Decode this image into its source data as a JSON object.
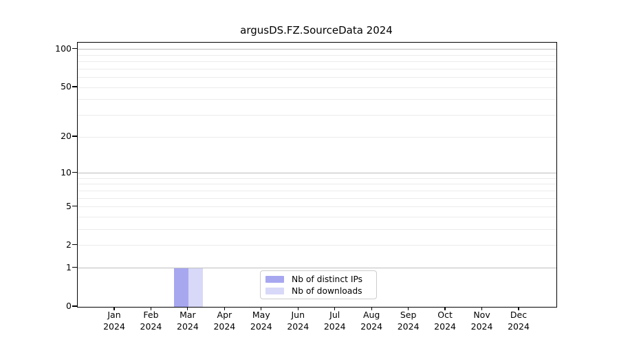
{
  "chart_data": {
    "type": "bar",
    "title": "argusDS.FZ.SourceData 2024",
    "xlabel": "",
    "ylabel": "",
    "categories": [
      "Jan",
      "Feb",
      "Mar",
      "Apr",
      "May",
      "Jun",
      "Jul",
      "Aug",
      "Sep",
      "Oct",
      "Nov",
      "Dec"
    ],
    "x_year_label": "2024",
    "series": [
      {
        "name": "Nb of distinct IPs",
        "color": "#a7a7f0",
        "values": [
          0,
          0,
          1,
          0,
          0,
          0,
          0,
          0,
          0,
          0,
          0,
          0
        ]
      },
      {
        "name": "Nb of downloads",
        "color": "#d8d8f8",
        "values": [
          0,
          0,
          1,
          0,
          0,
          0,
          0,
          0,
          0,
          0,
          0,
          0
        ]
      }
    ],
    "yscale": "log1p",
    "ylim": [
      0,
      112.8
    ],
    "yticks": [
      "0",
      "1",
      "2",
      "5",
      "10",
      "20",
      "50",
      "100"
    ],
    "ytick_values": [
      0,
      1,
      2,
      5,
      10,
      20,
      50,
      100
    ],
    "grid": {
      "on": true,
      "major_values": [
        1,
        10,
        100
      ],
      "minor_values": [
        2,
        3,
        4,
        5,
        6,
        7,
        8,
        9,
        20,
        30,
        40,
        50,
        60,
        70,
        80,
        90
      ],
      "major_color": "#bdbdbd",
      "minor_color": "#ebebeb"
    },
    "legend": {
      "position": "inside-bottom-center",
      "entries": [
        "Nb of distinct IPs",
        "Nb of downloads"
      ]
    },
    "colors": {
      "axis": "#000000",
      "background": "#ffffff",
      "legend_border": "#cccccc"
    }
  }
}
